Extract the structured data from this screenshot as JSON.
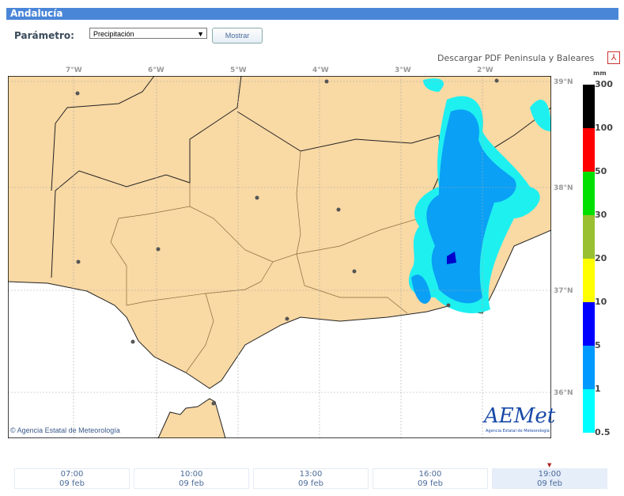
{
  "header": {
    "title": "Andalucía"
  },
  "form": {
    "param_label": "Parámetro:",
    "param_value": "Precipitación",
    "show_button": "Mostrar"
  },
  "download": {
    "label": "Descargar PDF Peninsula y Baleares",
    "icon": "pdf-icon"
  },
  "map": {
    "lon_ticks": [
      "7°W",
      "6°W",
      "5°W",
      "4°W",
      "3°W",
      "2°W"
    ],
    "lat_ticks": [
      "39°N",
      "38°N",
      "37°N",
      "36°N"
    ],
    "copyright": "© Agencia Estatal de Meteorología",
    "logo": "AEMet",
    "logo_sub": "Agencia Estatal de Meteorología",
    "colors": {
      "land": "#f9d9a4",
      "sea": "#ffffff",
      "light_rain": "#1ef0f0",
      "moderate_rain": "#0aa0f5",
      "heavy_rain": "#0000cc"
    }
  },
  "legend": {
    "unit": "mm",
    "labels": [
      "300",
      "100",
      "50",
      "30",
      "20",
      "10",
      "5",
      "1",
      "0.5"
    ],
    "colors": [
      "#000000",
      "#ff0000",
      "#00e000",
      "#99c030",
      "#ffff00",
      "#0000ff",
      "#0099ff",
      "#00ffff"
    ]
  },
  "timeline": {
    "selected": 4,
    "items": [
      {
        "time": "07:00",
        "date": "09 feb"
      },
      {
        "time": "10:00",
        "date": "09 feb"
      },
      {
        "time": "13:00",
        "date": "09 feb"
      },
      {
        "time": "16:00",
        "date": "09 feb"
      },
      {
        "time": "19:00",
        "date": "09 feb"
      }
    ]
  }
}
